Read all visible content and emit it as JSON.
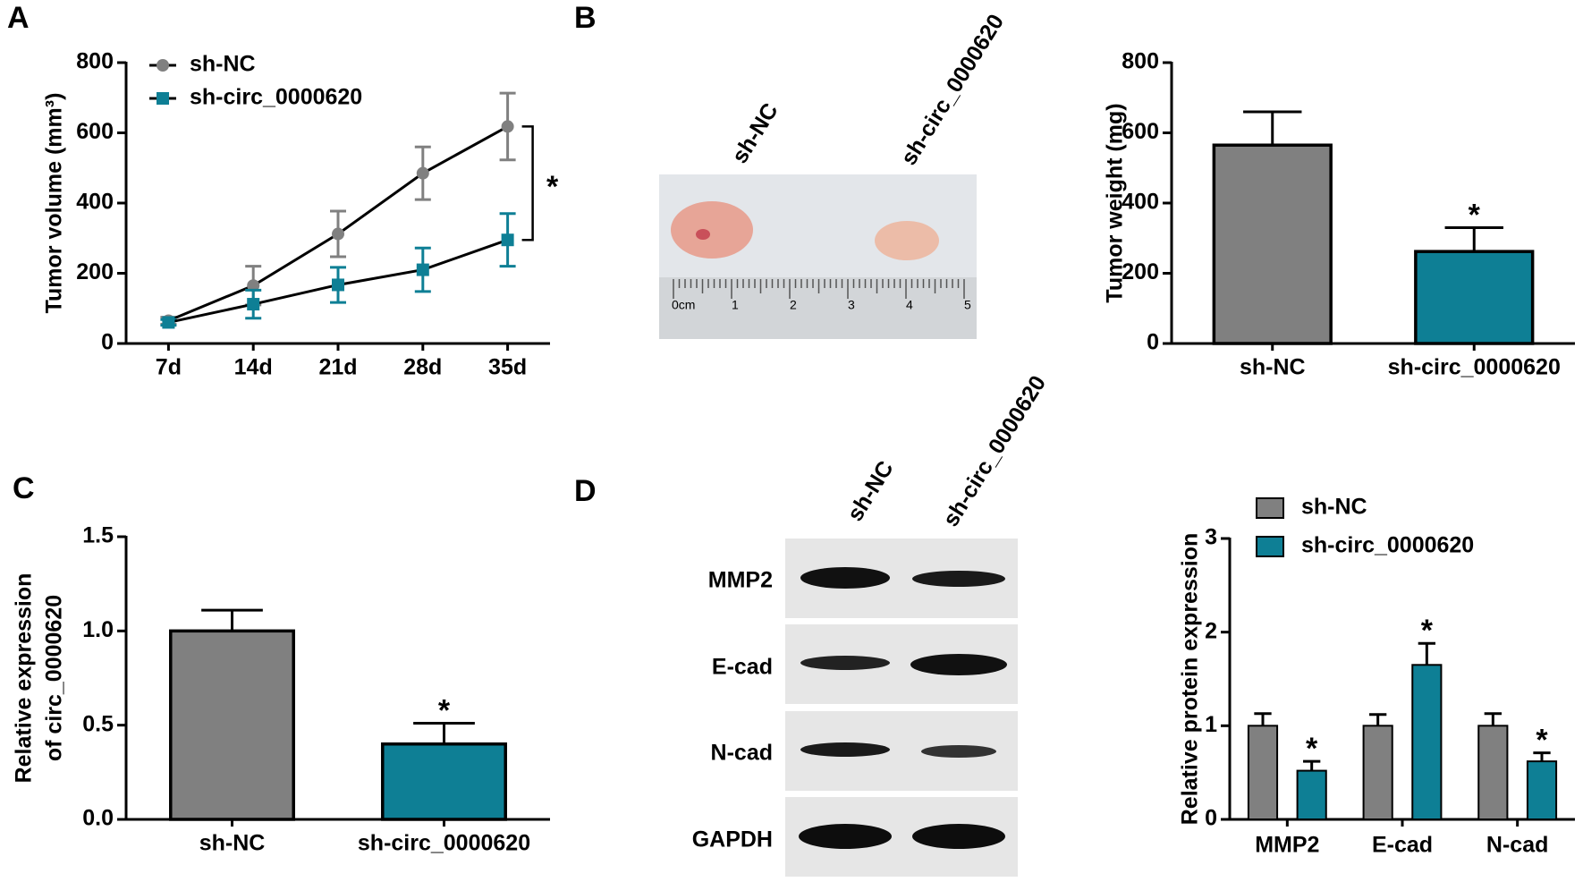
{
  "panel_labels": [
    "A",
    "B",
    "C",
    "D"
  ],
  "chart_data": [
    {
      "type": "line",
      "y_label": "Tumor volume (mm³)",
      "categories": [
        "7d",
        "14d",
        "21d",
        "28d",
        "35d"
      ],
      "series": [
        {
          "name": "sh-NC",
          "color": "#808080",
          "marker": "circle",
          "values": [
            65,
            165,
            312,
            485,
            618
          ],
          "errors": [
            10,
            55,
            65,
            75,
            95
          ]
        },
        {
          "name": "sh-circ_0000620",
          "color": "#0e7f95",
          "marker": "square",
          "values": [
            60,
            112,
            167,
            210,
            295
          ],
          "errors": [
            8,
            40,
            50,
            62,
            75
          ]
        }
      ],
      "line_color": "#000000",
      "annotation": "*",
      "ylim": [
        0,
        800
      ],
      "yticks": [
        0,
        200,
        400,
        600,
        800
      ]
    },
    {
      "type": "bar",
      "y_label": "Tumor weight (mg)",
      "categories": [
        "sh-NC",
        "sh-circ_0000620"
      ],
      "values": [
        565,
        262
      ],
      "errors": [
        95,
        68
      ],
      "colors": [
        "#808080",
        "#0e7f95"
      ],
      "annotation": "*",
      "ylim": [
        0,
        800
      ],
      "yticks": [
        0,
        200,
        400,
        600,
        800
      ]
    },
    {
      "type": "bar",
      "y_label": [
        "Relative expression",
        "of circ_0000620"
      ],
      "categories": [
        "sh-NC",
        "sh-circ_0000620"
      ],
      "values": [
        1.0,
        0.4
      ],
      "errors": [
        0.11,
        0.11
      ],
      "colors": [
        "#808080",
        "#0e7f95"
      ],
      "annotation": "*",
      "ylim": [
        0,
        1.5
      ],
      "yticks": [
        {
          "value": 0,
          "label": "0.0"
        },
        {
          "value": 0.5,
          "label": "0.5"
        },
        {
          "value": 1,
          "label": "1.0"
        },
        {
          "value": 1.5,
          "label": "1.5"
        }
      ]
    },
    {
      "type": "grouped_bar",
      "y_label": "Relative protein expression",
      "categories": [
        "MMP2",
        "E-cad",
        "N-cad"
      ],
      "series": [
        {
          "name": "sh-NC",
          "color": "#808080",
          "values": [
            1.0,
            1.0,
            1.0
          ],
          "errors": [
            0.13,
            0.12,
            0.13
          ]
        },
        {
          "name": "sh-circ_0000620",
          "color": "#0e7f95",
          "values": [
            0.52,
            1.65,
            0.62
          ],
          "errors": [
            0.1,
            0.23,
            0.09
          ]
        }
      ],
      "annotation": "*",
      "ylim": [
        0,
        3
      ],
      "yticks": [
        0,
        1,
        2,
        3
      ]
    }
  ],
  "photo": {
    "labels": [
      "sh-NC",
      "sh-circ_0000620"
    ],
    "ruler_labels": [
      "0cm",
      "1",
      "2",
      "3",
      "4",
      "5"
    ]
  },
  "blot": {
    "columns": [
      "sh-NC",
      "sh-circ_0000620"
    ],
    "rows": [
      "MMP2",
      "E-cad",
      "N-cad",
      "GAPDH"
    ]
  }
}
